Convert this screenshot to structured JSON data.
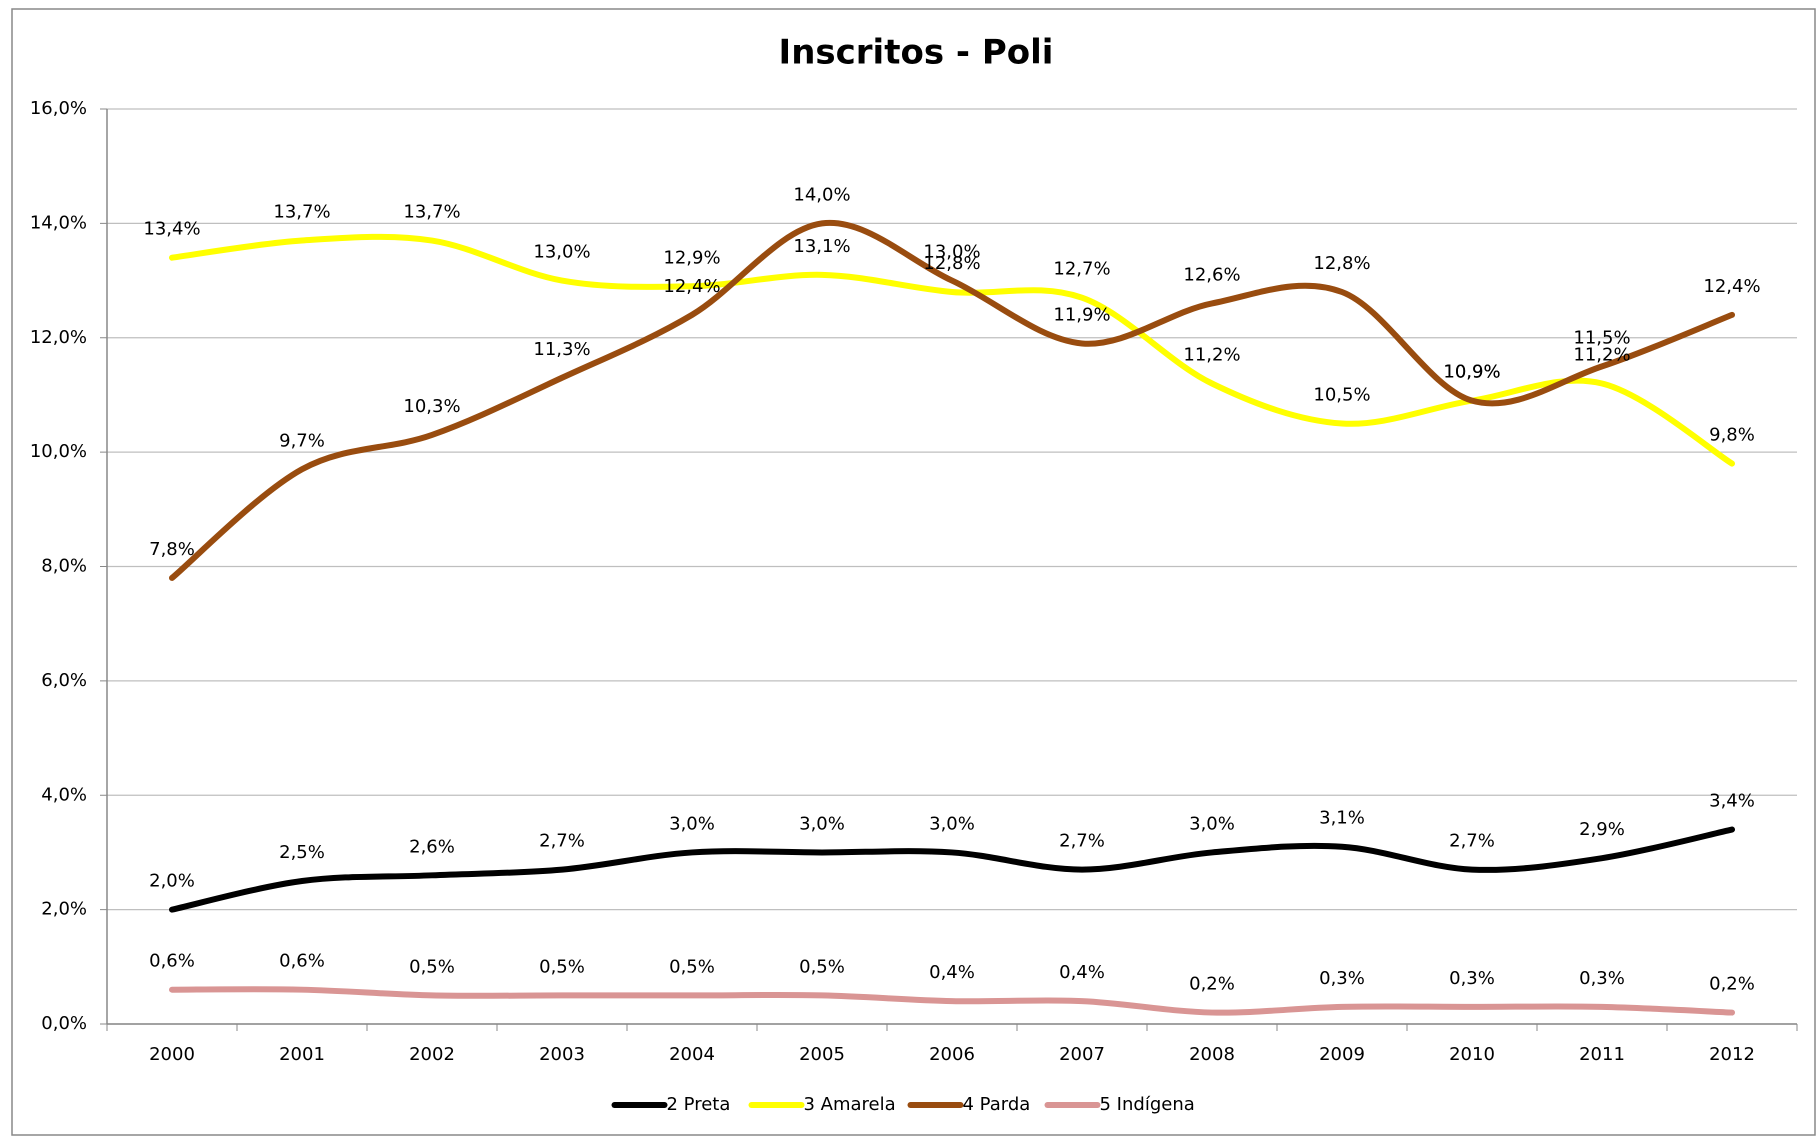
{
  "chart_data": {
    "type": "line",
    "title": "Inscritos - Poli",
    "categories": [
      "2000",
      "2001",
      "2002",
      "2003",
      "2004",
      "2005",
      "2006",
      "2007",
      "2008",
      "2009",
      "2010",
      "2011",
      "2012"
    ],
    "series": [
      {
        "name": "2 Preta",
        "color": "#000000",
        "values": [
          2.0,
          2.5,
          2.6,
          2.7,
          3.0,
          3.0,
          3.0,
          2.7,
          3.0,
          3.1,
          2.7,
          2.9,
          3.4
        ],
        "value_labels": [
          "2,0%",
          "2,5%",
          "2,6%",
          "2,7%",
          "3,0%",
          "3,0%",
          "3,0%",
          "2,7%",
          "3,0%",
          "3,1%",
          "2,7%",
          "2,9%",
          "3,4%"
        ]
      },
      {
        "name": "3 Amarela",
        "color": "#ffff00",
        "values": [
          13.4,
          13.7,
          13.7,
          13.0,
          12.9,
          13.1,
          12.8,
          12.7,
          11.2,
          10.5,
          10.9,
          11.2,
          9.8
        ],
        "value_labels": [
          "13,4%",
          "13,7%",
          "13,7%",
          "13,0%",
          "12,9%",
          "13,1%",
          "12,8%",
          "12,7%",
          "11,2%",
          "10,5%",
          "10,9%",
          "11,2%",
          "9,8%"
        ]
      },
      {
        "name": "4 Parda",
        "color": "#994c0f",
        "values": [
          7.8,
          9.7,
          10.3,
          11.3,
          12.4,
          14.0,
          13.0,
          11.9,
          12.6,
          12.8,
          10.9,
          11.5,
          12.4
        ],
        "value_labels": [
          "7,8%",
          "9,7%",
          "10,3%",
          "11,3%",
          "12,4%",
          "14,0%",
          "13,0%",
          "11,9%",
          "12,6%",
          "12,8%",
          "10,9%",
          "11,5%",
          "12,4%"
        ]
      },
      {
        "name": "5 Indígena",
        "color": "#d99594",
        "values": [
          0.6,
          0.6,
          0.5,
          0.5,
          0.5,
          0.5,
          0.4,
          0.4,
          0.2,
          0.3,
          0.3,
          0.3,
          0.2
        ],
        "value_labels": [
          "0,6%",
          "0,6%",
          "0,5%",
          "0,5%",
          "0,5%",
          "0,5%",
          "0,4%",
          "0,4%",
          "0,2%",
          "0,3%",
          "0,3%",
          "0,3%",
          "0,2%"
        ]
      }
    ],
    "ylim": [
      0,
      16
    ],
    "yticks": [
      {
        "value": 0,
        "label": "0,0%"
      },
      {
        "value": 2,
        "label": "2,0%"
      },
      {
        "value": 4,
        "label": "4,0%"
      },
      {
        "value": 6,
        "label": "6,0%"
      },
      {
        "value": 8,
        "label": "8,0%"
      },
      {
        "value": 10,
        "label": "10,0%"
      },
      {
        "value": 12,
        "label": "12,0%"
      },
      {
        "value": 14,
        "label": "14,0%"
      },
      {
        "value": 16,
        "label": "16,0%"
      }
    ],
    "grid": true,
    "legend": "bottom"
  }
}
